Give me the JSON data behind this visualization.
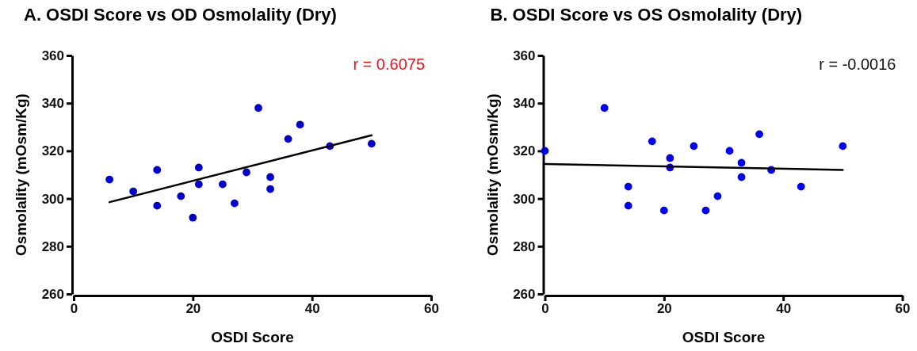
{
  "chart_data": [
    {
      "type": "scatter",
      "title": "A. OSDI Score vs OD Osmolality (Dry)",
      "xlabel": "OSDI Score",
      "ylabel": "Osmolality (mOsm/Kg)",
      "xlim": [
        0,
        60
      ],
      "xticks": [
        0,
        20,
        40,
        60
      ],
      "ylim": [
        260,
        360
      ],
      "yticks": [
        260,
        280,
        300,
        320,
        340,
        360
      ],
      "marker": "circle",
      "annotations": [
        "r = 0.6075"
      ],
      "series": [
        {
          "color": "#0000cc",
          "x": [
            6,
            10,
            14,
            14,
            18,
            20,
            21,
            21,
            25,
            27,
            29,
            31,
            33,
            33,
            36,
            38,
            43,
            50
          ],
          "values": [
            308,
            303,
            312,
            297,
            301,
            292,
            313,
            306,
            306,
            298,
            311,
            338,
            309,
            304,
            325,
            331,
            322,
            323
          ]
        },
        {
          "type": "line",
          "marker": "none",
          "color": "#000000",
          "x": [
            6,
            50
          ],
          "values": [
            298.5,
            326.5
          ]
        }
      ]
    },
    {
      "type": "scatter",
      "title": "B. OSDI Score vs OS Osmolality (Dry)",
      "xlabel": "OSDI Score",
      "ylabel": "Osmolality (mOsm/Kg)",
      "xlim": [
        0,
        60
      ],
      "xticks": [
        0,
        20,
        40,
        60
      ],
      "ylim": [
        260,
        360
      ],
      "yticks": [
        260,
        280,
        300,
        320,
        340,
        360
      ],
      "marker": "circle",
      "annotations": [
        "r = -0.0016"
      ],
      "series": [
        {
          "color": "#0000ee",
          "x": [
            0,
            10,
            14,
            14,
            18,
            20,
            21,
            21,
            25,
            27,
            29,
            31,
            33,
            33,
            36,
            38,
            43,
            50
          ],
          "values": [
            320,
            338,
            305,
            297,
            324,
            295,
            317,
            313,
            322,
            295,
            301,
            320,
            315,
            309,
            327,
            312,
            305,
            322
          ]
        },
        {
          "type": "line",
          "marker": "none",
          "color": "#000000",
          "x": [
            0,
            50
          ],
          "values": [
            314.5,
            312
          ]
        }
      ]
    }
  ]
}
